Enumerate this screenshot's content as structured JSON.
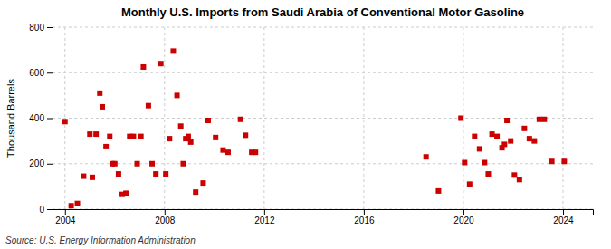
{
  "chart_data": {
    "type": "scatter",
    "title": "Monthly U.S. Imports from Saudi Arabia of Conventional Motor Gasoline",
    "ylabel": "Thousand Barrels",
    "source": "Source: U.S. Energy Information Administration",
    "color": "#CC0000",
    "marker": "square",
    "grid": true,
    "xlim": [
      2003.5,
      2025.2
    ],
    "ylim": [
      0,
      800
    ],
    "xticks": [
      2004,
      2008,
      2012,
      2016,
      2020,
      2024
    ],
    "yticks": [
      0,
      200,
      400,
      600,
      800
    ],
    "x": [
      2004.0,
      2004.25,
      2004.5,
      2004.75,
      2005.0,
      2005.1,
      2005.25,
      2005.4,
      2005.5,
      2005.65,
      2005.8,
      2005.9,
      2006.0,
      2006.15,
      2006.3,
      2006.45,
      2006.6,
      2006.75,
      2006.9,
      2007.05,
      2007.15,
      2007.35,
      2007.5,
      2007.65,
      2007.85,
      2008.05,
      2008.2,
      2008.35,
      2008.5,
      2008.65,
      2008.75,
      2008.85,
      2008.95,
      2009.05,
      2009.25,
      2009.55,
      2009.75,
      2010.05,
      2010.35,
      2010.55,
      2011.05,
      2011.25,
      2011.5,
      2011.65,
      2018.5,
      2019.0,
      2019.9,
      2020.05,
      2020.25,
      2020.45,
      2020.65,
      2020.85,
      2021.0,
      2021.15,
      2021.35,
      2021.55,
      2021.65,
      2021.75,
      2021.9,
      2022.05,
      2022.25,
      2022.45,
      2022.65,
      2022.85,
      2023.05,
      2023.25,
      2023.55,
      2024.05
    ],
    "values": [
      385,
      15,
      25,
      145,
      330,
      140,
      330,
      510,
      450,
      275,
      320,
      200,
      200,
      155,
      65,
      70,
      320,
      320,
      200,
      320,
      625,
      455,
      200,
      155,
      640,
      155,
      310,
      695,
      500,
      365,
      200,
      310,
      320,
      295,
      75,
      115,
      390,
      315,
      260,
      250,
      395,
      325,
      250,
      250,
      230,
      80,
      400,
      205,
      110,
      320,
      265,
      205,
      155,
      330,
      320,
      270,
      285,
      390,
      300,
      150,
      130,
      355,
      310,
      300,
      395,
      395,
      210,
      210
    ]
  }
}
